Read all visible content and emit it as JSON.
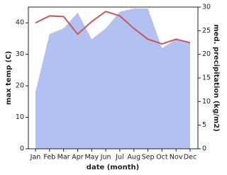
{
  "chart_data": {
    "type": "line-area",
    "x_label": "date (month)",
    "y_label": "max temp (C)",
    "y2_label": "med. precipitation (kg/m2)",
    "categories": [
      "Jan",
      "Feb",
      "Mar",
      "Apr",
      "May",
      "Jun",
      "Jul",
      "Aug",
      "Sep",
      "Oct",
      "Nov",
      "Dec"
    ],
    "series": [
      {
        "name": "med. precipitation",
        "kind": "area",
        "axis": "y2",
        "color": "#b3c1f2",
        "values": [
          12,
          24.3,
          25.5,
          28.8,
          23.2,
          25.5,
          29,
          29.7,
          29.7,
          21.3,
          23.2,
          22.5
        ]
      },
      {
        "name": "max temp",
        "kind": "line",
        "color": "#c8575a",
        "values": [
          40,
          42.2,
          42,
          36.4,
          40.4,
          43.6,
          42.2,
          38.2,
          34.8,
          33.3,
          34.8,
          33.7
        ]
      }
    ],
    "ylim": [
      0,
      45
    ],
    "yticks": [
      0,
      10,
      20,
      30,
      40
    ],
    "y2lim": [
      0,
      30
    ],
    "y2ticks": [
      0,
      5,
      10,
      15,
      20,
      25,
      30
    ]
  }
}
